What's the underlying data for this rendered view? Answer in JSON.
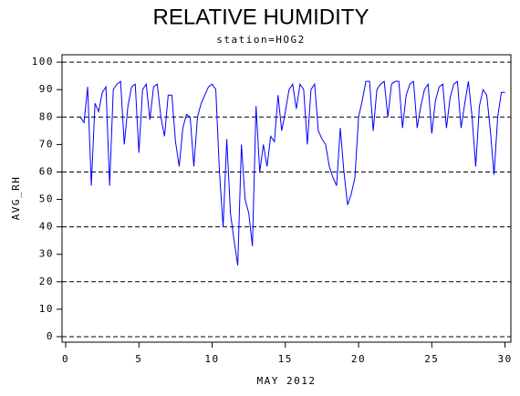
{
  "chart_data": {
    "type": "line",
    "title": "RELATIVE HUMIDITY",
    "subtitle": "station=HOG2",
    "x_label": "MAY 2012",
    "y_label": "AVG_RH",
    "xlim": [
      -0.25,
      30.4
    ],
    "ylim": [
      -2,
      102.7
    ],
    "xticks": [
      0,
      5,
      10,
      15,
      20,
      25,
      30
    ],
    "yticks": [
      0,
      10,
      20,
      30,
      40,
      50,
      60,
      70,
      80,
      90,
      100
    ],
    "reference_lines": [
      0,
      20,
      40,
      60,
      80,
      100
    ],
    "series": [
      {
        "color": "#0000ff",
        "x": [
          1,
          1.25,
          1.5,
          1.75,
          2,
          2.25,
          2.5,
          2.75,
          3,
          3.25,
          3.5,
          3.75,
          4,
          4.25,
          4.5,
          4.75,
          5,
          5.25,
          5.5,
          5.75,
          6,
          6.25,
          6.5,
          6.75,
          7,
          7.25,
          7.5,
          7.75,
          8,
          8.25,
          8.5,
          8.75,
          9,
          9.25,
          9.5,
          9.75,
          10,
          10.25,
          10.5,
          10.75,
          11,
          11.25,
          11.5,
          11.75,
          12,
          12.25,
          12.5,
          12.75,
          13,
          13.25,
          13.5,
          13.75,
          14,
          14.25,
          14.5,
          14.75,
          15,
          15.25,
          15.5,
          15.75,
          16,
          16.25,
          16.5,
          16.75,
          17,
          17.25,
          17.5,
          17.75,
          18,
          18.25,
          18.5,
          18.75,
          19,
          19.25,
          19.5,
          19.75,
          20,
          20.25,
          20.5,
          20.75,
          21,
          21.25,
          21.5,
          21.75,
          22,
          22.25,
          22.5,
          22.75,
          23,
          23.25,
          23.5,
          23.75,
          24,
          24.25,
          24.5,
          24.75,
          25,
          25.25,
          25.5,
          25.75,
          26,
          26.25,
          26.5,
          26.75,
          27,
          27.25,
          27.5,
          27.75,
          28,
          28.25,
          28.5,
          28.75,
          29,
          29.25,
          29.5,
          29.75,
          30
        ],
        "values": [
          80,
          78,
          91,
          55,
          85,
          82,
          89,
          91,
          55,
          90,
          92,
          93,
          70,
          84,
          91,
          92,
          67,
          90,
          92,
          79,
          91,
          92,
          80,
          73,
          88,
          88,
          71,
          62,
          76,
          81,
          80,
          62,
          80,
          85,
          88,
          91,
          92,
          90,
          60,
          40,
          72,
          45,
          35,
          26,
          70,
          50,
          45,
          33,
          84,
          60,
          70,
          62,
          73,
          71,
          88,
          75,
          82,
          90,
          92,
          83,
          92,
          90,
          70,
          90,
          92,
          75,
          72,
          70,
          62,
          58,
          55,
          76,
          60,
          48,
          52,
          58,
          80,
          86,
          93,
          93,
          75,
          90,
          92,
          93,
          80,
          92,
          93,
          93,
          76,
          88,
          92,
          93,
          76,
          84,
          90,
          92,
          74,
          86,
          91,
          92,
          76,
          87,
          92,
          93,
          76,
          85,
          93,
          80,
          62,
          84,
          90,
          88,
          75,
          59,
          80,
          89,
          89
        ]
      }
    ]
  }
}
